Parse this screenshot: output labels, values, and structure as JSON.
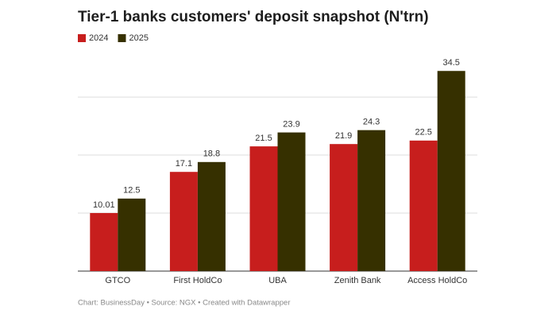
{
  "chart_data": {
    "type": "bar",
    "title": "Tier-1 banks customers' deposit snapshot (N'trn)",
    "categories": [
      "GTCO",
      "First HoldCo",
      "UBA",
      "Zenith Bank",
      "Access HoldCo"
    ],
    "series": [
      {
        "name": "2024",
        "color": "#c71e1d",
        "values": [
          10.01,
          17.1,
          21.5,
          21.9,
          22.5
        ]
      },
      {
        "name": "2025",
        "color": "#363000",
        "values": [
          12.5,
          18.8,
          23.9,
          24.3,
          34.5
        ]
      }
    ],
    "ylim": [
      0,
      37
    ],
    "yticks": [
      0,
      10,
      20,
      30
    ],
    "grid": true,
    "source": "Chart: BusinessDay • Source: NGX • Created with Datawrapper"
  }
}
